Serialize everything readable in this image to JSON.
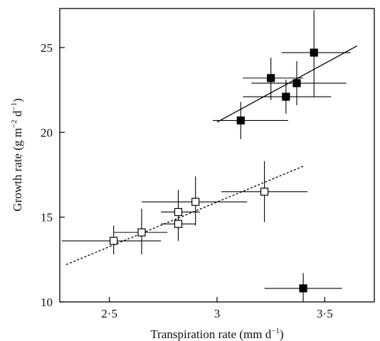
{
  "chart_data": {
    "type": "scatter",
    "title": "",
    "xlabel": "Transpiration rate (mm d",
    "xlabel_sup": "−1",
    "xlabel_end": ")",
    "ylabel": "Growth rate (g m",
    "ylabel_sup1": "−2",
    "ylabel_mid": " d",
    "ylabel_sup2": "−1",
    "ylabel_end": ")",
    "xlim": [
      2.27,
      3.73
    ],
    "ylim": [
      10,
      27.3
    ],
    "x_ticks": [
      {
        "value": 2.5,
        "label": "2·5"
      },
      {
        "value": 3.0,
        "label": "3"
      },
      {
        "value": 3.5,
        "label": "3·5"
      }
    ],
    "y_ticks": [
      {
        "value": 10,
        "label": "10"
      },
      {
        "value": 15,
        "label": "15"
      },
      {
        "value": 20,
        "label": "20"
      },
      {
        "value": 25,
        "label": "25"
      }
    ],
    "grid": false,
    "legend": "none",
    "series": [
      {
        "marker": "filled-square",
        "color": "#000000",
        "points": [
          {
            "x": 3.11,
            "y": 20.7,
            "xerr_low": 2.98,
            "xerr_high": 3.33,
            "yerr_low": 19.6,
            "yerr_high": 21.8
          },
          {
            "x": 3.25,
            "y": 23.2,
            "xerr_low": 3.12,
            "xerr_high": 3.4,
            "yerr_low": 21.9,
            "yerr_high": 24.4
          },
          {
            "x": 3.32,
            "y": 22.1,
            "xerr_low": 3.12,
            "xerr_high": 3.53,
            "yerr_low": 21.1,
            "yerr_high": 23.1
          },
          {
            "x": 3.37,
            "y": 22.9,
            "xerr_low": 3.16,
            "xerr_high": 3.6,
            "yerr_low": 21.6,
            "yerr_high": 24.2
          },
          {
            "x": 3.45,
            "y": 24.7,
            "xerr_low": 3.3,
            "xerr_high": 3.62,
            "yerr_low": 22.1,
            "yerr_high": 27.2
          },
          {
            "x": 3.4,
            "y": 10.8,
            "xerr_low": 3.22,
            "xerr_high": 3.58,
            "yerr_low": 10.0,
            "yerr_high": 11.7
          }
        ],
        "fit_line": {
          "style": "solid",
          "x": [
            3.0,
            3.65
          ],
          "y": [
            20.6,
            25.1
          ]
        }
      },
      {
        "marker": "open-square",
        "color": "#000000",
        "points": [
          {
            "x": 2.52,
            "y": 13.6,
            "xerr_low": 2.28,
            "xerr_high": 2.74,
            "yerr_low": 12.8,
            "yerr_high": 14.5
          },
          {
            "x": 2.65,
            "y": 14.1,
            "xerr_low": 2.52,
            "xerr_high": 2.77,
            "yerr_low": 12.8,
            "yerr_high": 15.5
          },
          {
            "x": 2.82,
            "y": 14.6,
            "xerr_low": 2.74,
            "xerr_high": 2.9,
            "yerr_low": 13.6,
            "yerr_high": 15.6
          },
          {
            "x": 2.82,
            "y": 15.3,
            "xerr_low": 2.74,
            "xerr_high": 2.92,
            "yerr_low": 14.2,
            "yerr_high": 16.6
          },
          {
            "x": 2.9,
            "y": 15.9,
            "xerr_low": 2.65,
            "xerr_high": 3.14,
            "yerr_low": 14.5,
            "yerr_high": 17.4
          },
          {
            "x": 3.22,
            "y": 16.5,
            "xerr_low": 3.02,
            "xerr_high": 3.42,
            "yerr_low": 14.7,
            "yerr_high": 18.3
          }
        ],
        "fit_line": {
          "style": "dashed",
          "x": [
            2.3,
            3.4
          ],
          "y": [
            12.2,
            18.0
          ]
        }
      }
    ]
  }
}
